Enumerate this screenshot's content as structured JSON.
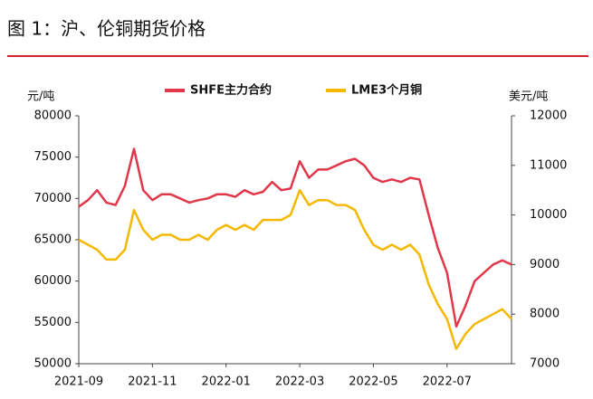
{
  "header": {
    "title": "图 1：沪、伦铜期货价格"
  },
  "chart_data": {
    "type": "line",
    "y_label": "元/吨",
    "y2_label": "美元/吨",
    "categories": [
      "2021-09",
      null,
      null,
      null,
      null,
      null,
      null,
      null,
      "2021-11",
      null,
      null,
      null,
      null,
      null,
      null,
      null,
      "2022-01",
      null,
      null,
      null,
      null,
      null,
      null,
      null,
      "2022-03",
      null,
      null,
      null,
      null,
      null,
      null,
      null,
      "2022-05",
      null,
      null,
      null,
      null,
      null,
      null,
      null,
      "2022-07",
      null,
      null,
      null,
      null,
      null,
      null,
      null
    ],
    "series": [
      {
        "name": "SHFE主力合约",
        "color": "#e0384a",
        "values": [
          69000,
          69800,
          71000,
          69500,
          69200,
          71500,
          76000,
          71000,
          69800,
          70500,
          70500,
          70000,
          69500,
          69800,
          70000,
          70500,
          70500,
          70200,
          71000,
          70500,
          70800,
          72000,
          71000,
          71200,
          74500,
          72500,
          73500,
          73500,
          74000,
          74500,
          74800,
          74000,
          72500,
          72000,
          72300,
          72000,
          72500,
          72300,
          68000,
          64000,
          61000,
          54500,
          57000,
          60000,
          61000,
          62000,
          62500,
          62000
        ]
      },
      {
        "name": "LME3个月铜",
        "color": "#f5b800",
        "axis": "y2",
        "values": [
          9500,
          9400,
          9300,
          9100,
          9100,
          9300,
          10100,
          9700,
          9500,
          9600,
          9600,
          9500,
          9500,
          9600,
          9500,
          9700,
          9800,
          9700,
          9800,
          9700,
          9900,
          9900,
          9900,
          10000,
          10500,
          10200,
          10300,
          10300,
          10200,
          10200,
          10100,
          9700,
          9400,
          9300,
          9400,
          9300,
          9400,
          9200,
          8600,
          8200,
          7900,
          7300,
          7600,
          7800,
          7900,
          8000,
          8100,
          7900
        ]
      }
    ],
    "ylim": [
      50000,
      80000
    ],
    "yticks": [
      50000,
      55000,
      60000,
      65000,
      70000,
      75000,
      80000
    ],
    "y2lim": [
      7000,
      12000
    ],
    "y2ticks": [
      7000,
      8000,
      9000,
      10000,
      11000,
      12000
    ],
    "legend": "top"
  }
}
